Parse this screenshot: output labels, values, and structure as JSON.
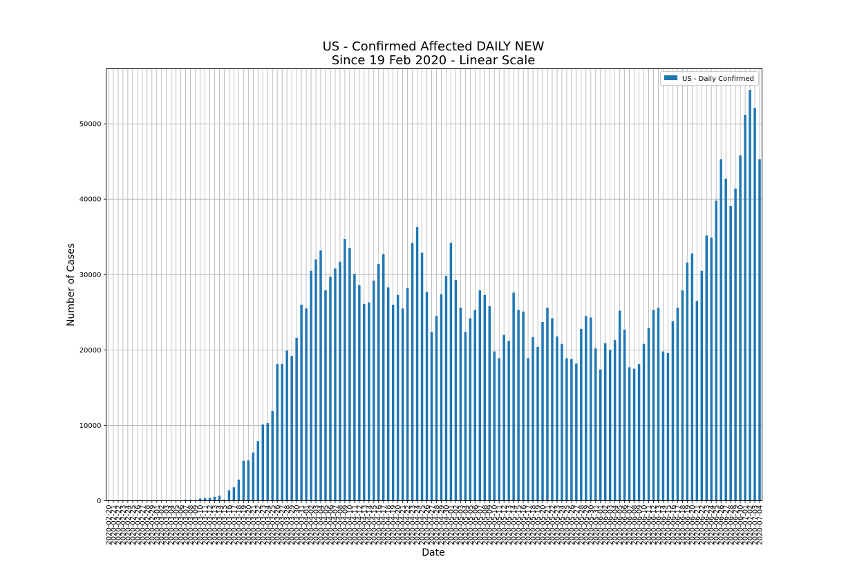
{
  "chart_data": {
    "type": "bar",
    "title": "US - Confirmed Affected DAILY NEW",
    "subtitle": "Since 19 Feb 2020 - Linear Scale",
    "xlabel": "Date",
    "ylabel": "Number of Cases",
    "ylim": [
      0,
      57300
    ],
    "yticks": [
      0,
      10000,
      20000,
      30000,
      40000,
      50000
    ],
    "grid": true,
    "legend_position": "top-right",
    "bar_color": "#1f77b4",
    "categories": [
      "2020-02-20",
      "2020-02-21",
      "2020-02-22",
      "2020-02-23",
      "2020-02-24",
      "2020-02-25",
      "2020-02-26",
      "2020-02-27",
      "2020-02-28",
      "2020-02-29",
      "2020-03-01",
      "2020-03-02",
      "2020-03-03",
      "2020-03-04",
      "2020-03-05",
      "2020-03-06",
      "2020-03-07",
      "2020-03-08",
      "2020-03-09",
      "2020-03-10",
      "2020-03-11",
      "2020-03-12",
      "2020-03-13",
      "2020-03-14",
      "2020-03-15",
      "2020-03-16",
      "2020-03-17",
      "2020-03-18",
      "2020-03-19",
      "2020-03-20",
      "2020-03-21",
      "2020-03-22",
      "2020-03-23",
      "2020-03-24",
      "2020-03-25",
      "2020-03-26",
      "2020-03-27",
      "2020-03-28",
      "2020-03-29",
      "2020-03-30",
      "2020-03-31",
      "2020-04-01",
      "2020-04-02",
      "2020-04-03",
      "2020-04-04",
      "2020-04-05",
      "2020-04-06",
      "2020-04-07",
      "2020-04-08",
      "2020-04-09",
      "2020-04-10",
      "2020-04-11",
      "2020-04-12",
      "2020-04-13",
      "2020-04-14",
      "2020-04-15",
      "2020-04-16",
      "2020-04-17",
      "2020-04-18",
      "2020-04-19",
      "2020-04-20",
      "2020-04-21",
      "2020-04-22",
      "2020-04-23",
      "2020-04-24",
      "2020-04-25",
      "2020-04-26",
      "2020-04-27",
      "2020-04-28",
      "2020-04-29",
      "2020-04-30",
      "2020-05-01",
      "2020-05-02",
      "2020-05-03",
      "2020-05-04",
      "2020-05-05",
      "2020-05-06",
      "2020-05-07",
      "2020-05-08",
      "2020-05-09",
      "2020-05-10",
      "2020-05-11",
      "2020-05-12",
      "2020-05-13",
      "2020-05-14",
      "2020-05-15",
      "2020-05-16",
      "2020-05-17",
      "2020-05-18",
      "2020-05-19",
      "2020-05-20",
      "2020-05-21",
      "2020-05-22",
      "2020-05-23",
      "2020-05-24",
      "2020-05-25",
      "2020-05-26",
      "2020-05-27",
      "2020-05-28",
      "2020-05-29",
      "2020-05-30",
      "2020-05-31",
      "2020-06-01",
      "2020-06-02",
      "2020-06-03",
      "2020-06-04",
      "2020-06-05",
      "2020-06-06",
      "2020-06-07",
      "2020-06-08",
      "2020-06-09",
      "2020-06-10",
      "2020-06-11",
      "2020-06-12",
      "2020-06-13",
      "2020-06-14",
      "2020-06-15",
      "2020-06-16",
      "2020-06-17",
      "2020-06-18",
      "2020-06-19",
      "2020-06-20",
      "2020-06-21",
      "2020-06-22",
      "2020-06-23",
      "2020-06-24",
      "2020-06-25",
      "2020-06-26",
      "2020-06-27",
      "2020-06-28",
      "2020-06-29",
      "2020-06-30",
      "2020-07-01",
      "2020-07-02",
      "2020-07-03",
      "2020-07-04"
    ],
    "series": [
      {
        "name": "US - Daily Confirmed",
        "values": [
          0,
          0,
          0,
          0,
          15,
          0,
          6,
          1,
          9,
          8,
          6,
          23,
          20,
          31,
          68,
          45,
          140,
          116,
          65,
          290,
          340,
          390,
          513,
          663,
          140,
          1380,
          1770,
          2800,
          5300,
          5350,
          6400,
          7900,
          10100,
          10300,
          11900,
          18100,
          18150,
          19900,
          19200,
          21600,
          26000,
          25500,
          30500,
          32000,
          33200,
          27900,
          29700,
          30800,
          31700,
          34700,
          33500,
          30100,
          28600,
          26100,
          26300,
          29200,
          31400,
          32700,
          28300,
          26000,
          27300,
          25500,
          28200,
          34200,
          36300,
          32900,
          27700,
          22400,
          24500,
          27400,
          29800,
          34200,
          29300,
          25600,
          22400,
          24200,
          25300,
          27900,
          27300,
          25800,
          19800,
          18900,
          22000,
          21200,
          27600,
          25300,
          25100,
          18900,
          21700,
          20400,
          23700,
          25600,
          24200,
          21800,
          20800,
          18900,
          18800,
          18200,
          22800,
          24500,
          24300,
          20200,
          17400,
          20900,
          20000,
          21300,
          25200,
          22700,
          17700,
          17500,
          18100,
          20800,
          22900,
          25300,
          25600,
          19800,
          19600,
          23800,
          25600,
          27900,
          31600,
          32800,
          26500,
          30500,
          35200,
          34900,
          39800,
          45300,
          42700,
          39100,
          41400,
          45800,
          51200,
          54500,
          52100,
          45300
        ]
      }
    ]
  }
}
